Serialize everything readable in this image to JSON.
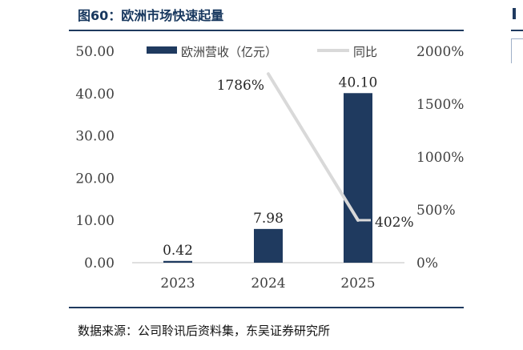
{
  "figure": {
    "title": "图60：欧洲市场快速起量",
    "source": "数据来源：公司聆讯后资料集，东吴证券研究所"
  },
  "colors": {
    "bar": "#1f3a5f",
    "line": "#d9d9d9",
    "rule": "#1f3a5f"
  },
  "chart_data": {
    "type": "bar",
    "categories": [
      "2023",
      "2024",
      "2025"
    ],
    "series": [
      {
        "name": "欧洲营收（亿元）",
        "type": "bar",
        "axis": "left",
        "values": [
          0.42,
          7.98,
          40.1
        ],
        "labels": [
          "0.42",
          "7.98",
          "40.10"
        ]
      },
      {
        "name": "同比",
        "type": "line",
        "axis": "right",
        "values": [
          null,
          1786,
          402
        ],
        "labels": [
          "",
          "1786%",
          "402%"
        ]
      }
    ],
    "y_left": {
      "min": 0,
      "max": 50,
      "ticks": [
        "0.00",
        "10.00",
        "20.00",
        "30.00",
        "40.00",
        "50.00"
      ]
    },
    "y_right": {
      "min": 0,
      "max": 2000,
      "ticks": [
        "0%",
        "500%",
        "1000%",
        "1500%",
        "2000%"
      ]
    },
    "grid": false,
    "legend": "top"
  }
}
